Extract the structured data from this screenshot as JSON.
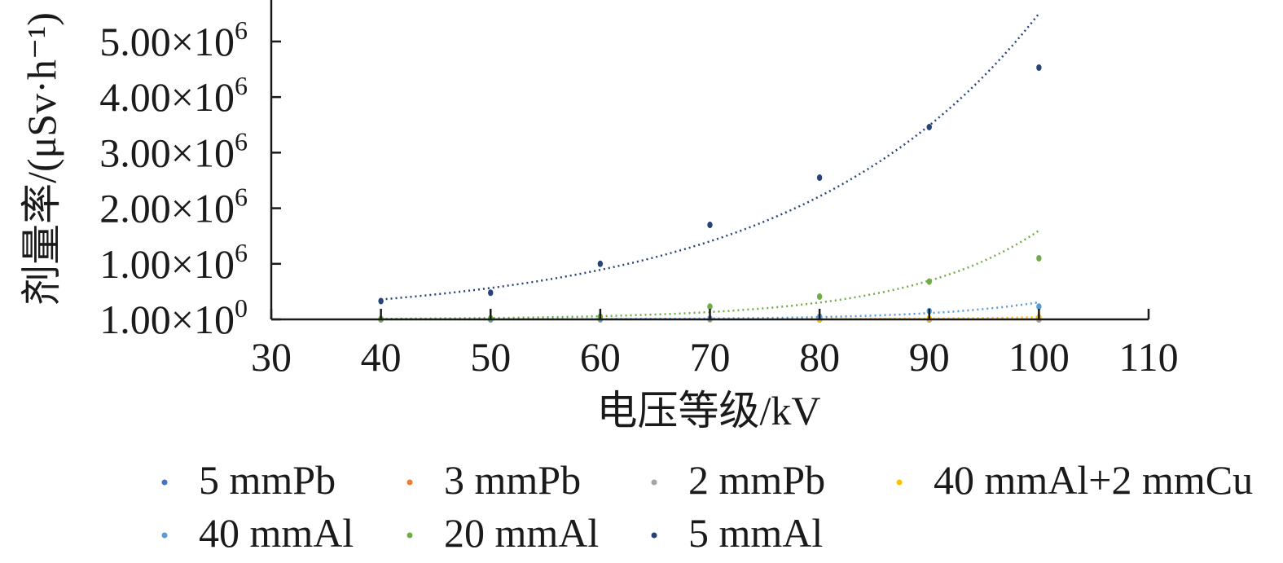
{
  "chart_data": {
    "type": "scatter",
    "xlabel": "电压等级/kV",
    "ylabel": "剂量率/(μSv·h⁻¹)",
    "xlim": [
      30,
      110
    ],
    "x_ticks": [
      30,
      40,
      50,
      60,
      70,
      80,
      90,
      100,
      110
    ],
    "ylim": [
      0,
      5600000
    ],
    "y_ticks": [
      {
        "value": 1,
        "mantissa": "1.00×10",
        "exp": "0"
      },
      {
        "value": 1000000,
        "mantissa": "1.00×10",
        "exp": "6"
      },
      {
        "value": 2000000,
        "mantissa": "2.00×10",
        "exp": "6"
      },
      {
        "value": 3000000,
        "mantissa": "3.00×10",
        "exp": "6"
      },
      {
        "value": 4000000,
        "mantissa": "4.00×10",
        "exp": "6"
      },
      {
        "value": 5000000,
        "mantissa": "5.00×10",
        "exp": "6"
      }
    ],
    "x": [
      40,
      50,
      60,
      70,
      80,
      90,
      100
    ],
    "grid": false,
    "legend_position": "bottom",
    "series": [
      {
        "name": "5 mmPb",
        "color": "#4472c4",
        "values": [
          0,
          0,
          0,
          0,
          0,
          0,
          0
        ],
        "trendline": false
      },
      {
        "name": "3 mmPb",
        "color": "#ed7d31",
        "values": [
          0,
          0,
          0,
          0,
          0,
          0,
          0
        ],
        "trendline": false
      },
      {
        "name": "2 mmPb",
        "color": "#a5a5a5",
        "values": [
          0,
          0,
          0,
          0,
          0,
          0,
          0
        ],
        "trendline": false
      },
      {
        "name": "40 mmAl+2 mmCu",
        "color": "#ffc000",
        "values": [
          0,
          0,
          0,
          0,
          5000,
          15000,
          40000
        ],
        "trendline": true
      },
      {
        "name": "40 mmAl",
        "color": "#5b9bd5",
        "values": [
          0,
          0,
          5000,
          15000,
          50000,
          150000,
          230000
        ],
        "trendline": true
      },
      {
        "name": "20 mmAl",
        "color": "#70ad47",
        "values": [
          10000,
          20000,
          50000,
          230000,
          410000,
          680000,
          1100000
        ],
        "trendline": true
      },
      {
        "name": "5 mmAl",
        "color": "#264478",
        "values": [
          330000,
          480000,
          1000000,
          1700000,
          2550000,
          3460000,
          4530000
        ],
        "trendline": true
      }
    ]
  }
}
